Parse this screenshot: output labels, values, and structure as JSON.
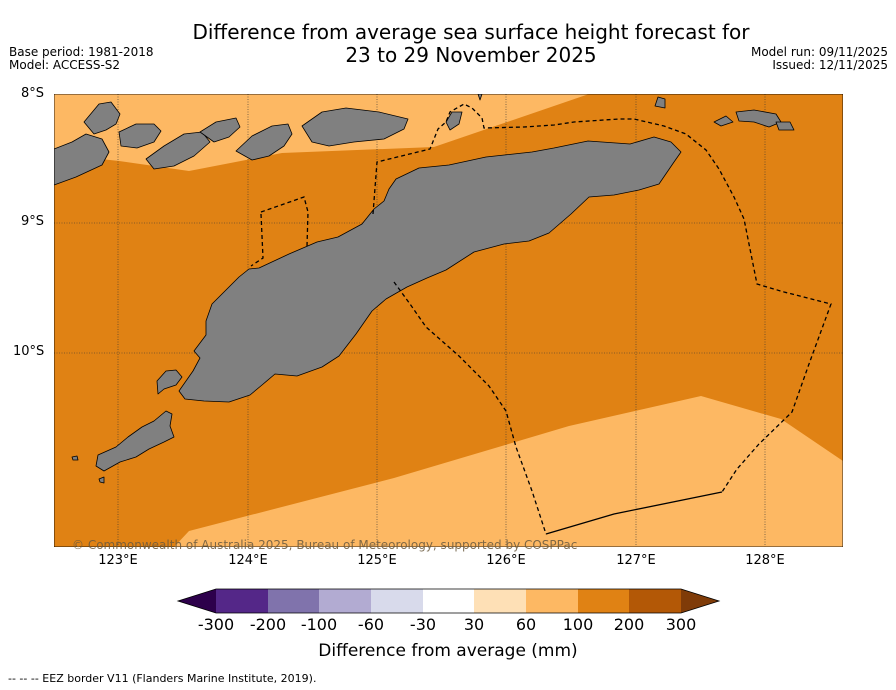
{
  "header": {
    "title_line1": "Difference from average sea surface height forecast for",
    "title_line2": "23 to 29 November 2025",
    "base_period": "Base period: 1981-2018",
    "model": "Model: ACCESS-S2",
    "model_run": "Model run: 09/11/2025",
    "issued": "Issued: 12/11/2025"
  },
  "map": {
    "lat_labels": [
      "8°S",
      "9°S",
      "10°S"
    ],
    "lon_labels": [
      "123°E",
      "124°E",
      "125°E",
      "126°E",
      "127°E",
      "128°E"
    ],
    "copyright": "© Commonwealth of Australia 2025, Bureau of Meteorology, supported by COSPPac",
    "colors": {
      "ocean_100_200": "#e08214",
      "ocean_60_100": "#fdb863",
      "land": "#808080",
      "border": "#000000"
    }
  },
  "colorbar": {
    "title": "Difference from average (mm)",
    "ticks": [
      "-300",
      "-200",
      "-100",
      "-60",
      "-30",
      "30",
      "60",
      "100",
      "200",
      "300"
    ],
    "colors": [
      "#2d004b",
      "#542788",
      "#8073ac",
      "#b2abd2",
      "#d8daeb",
      "#ffffff",
      "#fee0b6",
      "#fdb863",
      "#e08214",
      "#b35806",
      "#7f3b08"
    ]
  },
  "footer": {
    "eez_note": "--  --  -- EEZ border V11 (Flanders Marine Institute, 2019)."
  }
}
